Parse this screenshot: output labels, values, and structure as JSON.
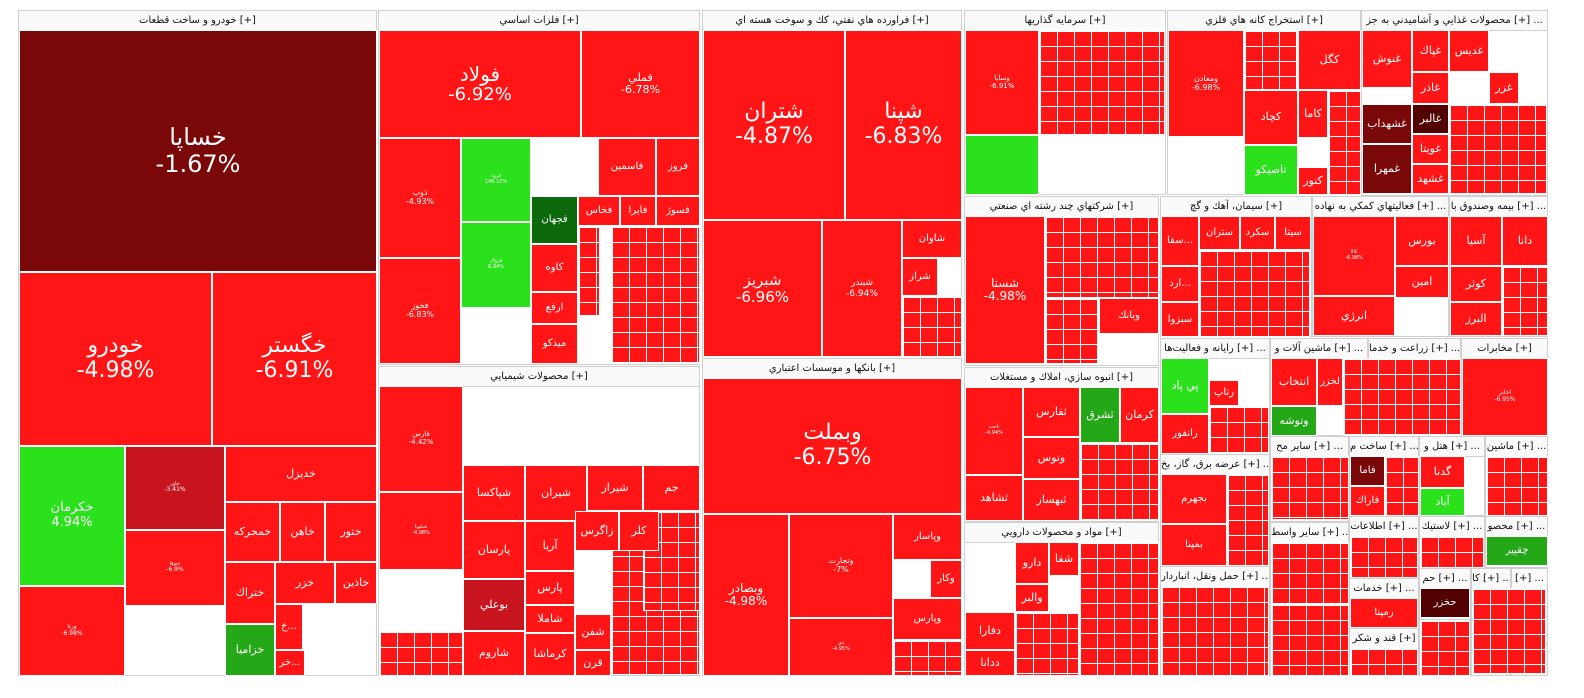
{
  "colors": {
    "loss": "#ff1515",
    "big_loss": "#7a0808",
    "dark": "#520000",
    "gain": "#2ae11b",
    "dgain": "#25a818",
    "dgreen": "#0c6a0c",
    "mid": "#c8141e",
    "text": "#ffffff"
  },
  "sections": [
    {
      "title": "خودرو و ساخت قطعات [+]"
    },
    {
      "title": "فلزات اساسي [+]"
    },
    {
      "title": "فراورده هاي نفتي، كك و سوخت هسته اي [+]"
    },
    {
      "title": "سرمايه گذاريها [+]"
    },
    {
      "title": "استخراج كانه هاي فلزي [+]"
    },
    {
      "title": "محصولات غذايي و آشاميدني به جز [+] ..."
    },
    {
      "title": "محصولات شيميايي [+]"
    },
    {
      "title": "بانكها و موسسات اعتباري [+]"
    },
    {
      "title": "شركتهاي چند رشته اي صنعتي [+]"
    },
    {
      "title": "سيمان، آهك و گچ [+]"
    },
    {
      "title": "فعاليتهاي كمكي به نهاده [+] ..."
    },
    {
      "title": "بيمه وصندوق با [+] ..."
    },
    {
      "title": "انبوه سازي، املاك و مستغلات [+]"
    },
    {
      "title": "رايانه و فعاليت‌ها [+] ..."
    },
    {
      "title": "ماشين آلات و [+] ..."
    },
    {
      "title": "زراعت و خدما [+] ..."
    },
    {
      "title": "مخابرات [+]"
    },
    {
      "title": "ساير مح [+] ..."
    },
    {
      "title": "ساخت م [+] ..."
    },
    {
      "title": "هتل و [+] ..."
    },
    {
      "title": "ماشين [+] ..."
    },
    {
      "title": "عرضه برق، گاز، بخ [+] ..."
    },
    {
      "title": "مواد و محصولات دارويي [+]"
    },
    {
      "title": "ساير واسط [+] ..."
    },
    {
      "title": "اطلاعات [+] ..."
    },
    {
      "title": "لاستيك [+] ..."
    },
    {
      "title": "محصو [+] ..."
    },
    {
      "title": "حمل ونقل، انباردار [+] ..."
    },
    {
      "title": "خدمات [+] ..."
    },
    {
      "title": "محصولات [+] ..."
    },
    {
      "title": "قند و شكر [+]"
    },
    {
      "title": "حم [+] ..."
    },
    {
      "title": "كا [+] ..."
    },
    {
      "title": "[+] ..."
    },
    {
      "title": "اس [+] ..."
    },
    {
      "title": "[+]"
    },
    {
      "title": "[+]"
    },
    {
      "title": "[+]"
    }
  ],
  "chart_data": {
    "type": "treemap",
    "unit": "percent change",
    "tiles": [
      {
        "name": "خساپا",
        "value": "-1.67%"
      },
      {
        "name": "خودرو",
        "value": "-4.98%"
      },
      {
        "name": "خگستر",
        "value": "-6.91%"
      },
      {
        "name": "خكرمان",
        "value": "4.94%"
      },
      {
        "name": "خاور",
        "value": "-3.41%"
      },
      {
        "name": "ورنا",
        "value": "-6.98%"
      },
      {
        "name": "ختوقا",
        "value": "-6.9%"
      },
      {
        "name": "خديزل",
        "value": ""
      },
      {
        "name": "خمحركه",
        "value": ""
      },
      {
        "name": "خاهن",
        "value": ""
      },
      {
        "name": "ختور",
        "value": ""
      },
      {
        "name": "ختراك",
        "value": ""
      },
      {
        "name": "خزر",
        "value": ""
      },
      {
        "name": "خاذين",
        "value": ""
      },
      {
        "name": "خزاميا",
        "value": ""
      },
      {
        "name": "خر...",
        "value": ""
      },
      {
        "name": "خ...",
        "value": ""
      },
      {
        "name": "فولاد",
        "value": "-6.92%"
      },
      {
        "name": "فملي",
        "value": "-6.78%"
      },
      {
        "name": "ذوب",
        "value": "-4.93%"
      },
      {
        "name": "فخوز",
        "value": "-6.83%"
      },
      {
        "name": "فرود",
        "value": "146.15%"
      },
      {
        "name": "فروال",
        "value": "6.94%"
      },
      {
        "name": "فاسمين",
        "value": ""
      },
      {
        "name": "فروز",
        "value": ""
      },
      {
        "name": "فجهان",
        "value": ""
      },
      {
        "name": "فخاس",
        "value": ""
      },
      {
        "name": "فايرا",
        "value": ""
      },
      {
        "name": "فسوژ",
        "value": ""
      },
      {
        "name": "كاوه",
        "value": ""
      },
      {
        "name": "ارفع",
        "value": ""
      },
      {
        "name": "ميدكو",
        "value": ""
      },
      {
        "name": "شتران",
        "value": "-4.87%"
      },
      {
        "name": "شپنا",
        "value": "-6.83%"
      },
      {
        "name": "شبريز",
        "value": "-6.96%"
      },
      {
        "name": "شبندر",
        "value": "-6.94%"
      },
      {
        "name": "شاوان",
        "value": ""
      },
      {
        "name": "شراز",
        "value": ""
      },
      {
        "name": "وبملت",
        "value": "-6.75%"
      },
      {
        "name": "وبصادر",
        "value": "-4.98%"
      },
      {
        "name": "وتجارت",
        "value": "-7%"
      },
      {
        "name": "دي",
        "value": "-4.95%"
      },
      {
        "name": "وپاسار",
        "value": ""
      },
      {
        "name": "وكار",
        "value": ""
      },
      {
        "name": "وپارس",
        "value": ""
      },
      {
        "name": "فارس",
        "value": "-4.42%"
      },
      {
        "name": "شكويا",
        "value": "-4.98%"
      },
      {
        "name": "شپاكسا",
        "value": ""
      },
      {
        "name": "شيران",
        "value": ""
      },
      {
        "name": "شيراز",
        "value": ""
      },
      {
        "name": "جم",
        "value": ""
      },
      {
        "name": "پارسان",
        "value": ""
      },
      {
        "name": "آريا",
        "value": ""
      },
      {
        "name": "زاگرس",
        "value": ""
      },
      {
        "name": "كلر",
        "value": ""
      },
      {
        "name": "پارس",
        "value": ""
      },
      {
        "name": "بوعلي",
        "value": ""
      },
      {
        "name": "شاملا",
        "value": ""
      },
      {
        "name": "شفن",
        "value": ""
      },
      {
        "name": "شاروم",
        "value": ""
      },
      {
        "name": "كرماشا",
        "value": ""
      },
      {
        "name": "قرن",
        "value": ""
      },
      {
        "name": "وسايا",
        "value": "-6.91%"
      },
      {
        "name": "ومعادن",
        "value": "-6.98%"
      },
      {
        "name": "كگل",
        "value": ""
      },
      {
        "name": "كچاد",
        "value": ""
      },
      {
        "name": "كاما",
        "value": ""
      },
      {
        "name": "تاصيكو",
        "value": ""
      },
      {
        "name": "كنور",
        "value": ""
      },
      {
        "name": "غنوش",
        "value": ""
      },
      {
        "name": "غپاك",
        "value": ""
      },
      {
        "name": "غديس",
        "value": ""
      },
      {
        "name": "غالبر",
        "value": ""
      },
      {
        "name": "غشهداب",
        "value": ""
      },
      {
        "name": "غمهرا",
        "value": ""
      },
      {
        "name": "غويتا",
        "value": ""
      },
      {
        "name": "غشهد",
        "value": ""
      },
      {
        "name": "غاذر",
        "value": ""
      },
      {
        "name": "غزر",
        "value": ""
      },
      {
        "name": "شستا",
        "value": "-4.98%"
      },
      {
        "name": "وبانك",
        "value": ""
      },
      {
        "name": "سيتا",
        "value": ""
      },
      {
        "name": "سكرد",
        "value": ""
      },
      {
        "name": "ستران",
        "value": ""
      },
      {
        "name": "سبزوا",
        "value": ""
      },
      {
        "name": "سفا...",
        "value": ""
      },
      {
        "name": "ارد...",
        "value": ""
      },
      {
        "name": "كالا",
        "value": "-6.98%"
      },
      {
        "name": "بورس",
        "value": ""
      },
      {
        "name": "امين",
        "value": ""
      },
      {
        "name": "انرژي",
        "value": ""
      },
      {
        "name": "آسيا",
        "value": ""
      },
      {
        "name": "دانا",
        "value": ""
      },
      {
        "name": "كوثر",
        "value": ""
      },
      {
        "name": "البرز",
        "value": ""
      },
      {
        "name": "ثاخت",
        "value": "-4.94%"
      },
      {
        "name": "ثفارس",
        "value": ""
      },
      {
        "name": "ثشرق",
        "value": ""
      },
      {
        "name": "كرمان",
        "value": ""
      },
      {
        "name": "وتوس",
        "value": ""
      },
      {
        "name": "ثبهساز",
        "value": ""
      },
      {
        "name": "ثشاهد",
        "value": ""
      },
      {
        "name": "پي پاد",
        "value": ""
      },
      {
        "name": "رتاپ",
        "value": ""
      },
      {
        "name": "رانفور",
        "value": ""
      },
      {
        "name": "انتخاب",
        "value": ""
      },
      {
        "name": "وتوشه",
        "value": ""
      },
      {
        "name": "لخزر",
        "value": ""
      },
      {
        "name": "اخابر",
        "value": "-6.95%"
      },
      {
        "name": "فاما",
        "value": ""
      },
      {
        "name": "فاراك",
        "value": ""
      },
      {
        "name": "گدنا",
        "value": ""
      },
      {
        "name": "آباد",
        "value": ""
      },
      {
        "name": "بجهرم",
        "value": ""
      },
      {
        "name": "بمپنا",
        "value": ""
      },
      {
        "name": "دارو",
        "value": ""
      },
      {
        "name": "والبر",
        "value": ""
      },
      {
        "name": "شفا",
        "value": ""
      },
      {
        "name": "دفارا",
        "value": ""
      },
      {
        "name": "ددانا",
        "value": ""
      },
      {
        "name": "چقپير",
        "value": ""
      },
      {
        "name": "رمپنا",
        "value": ""
      },
      {
        "name": "حخزر",
        "value": ""
      }
    ]
  }
}
